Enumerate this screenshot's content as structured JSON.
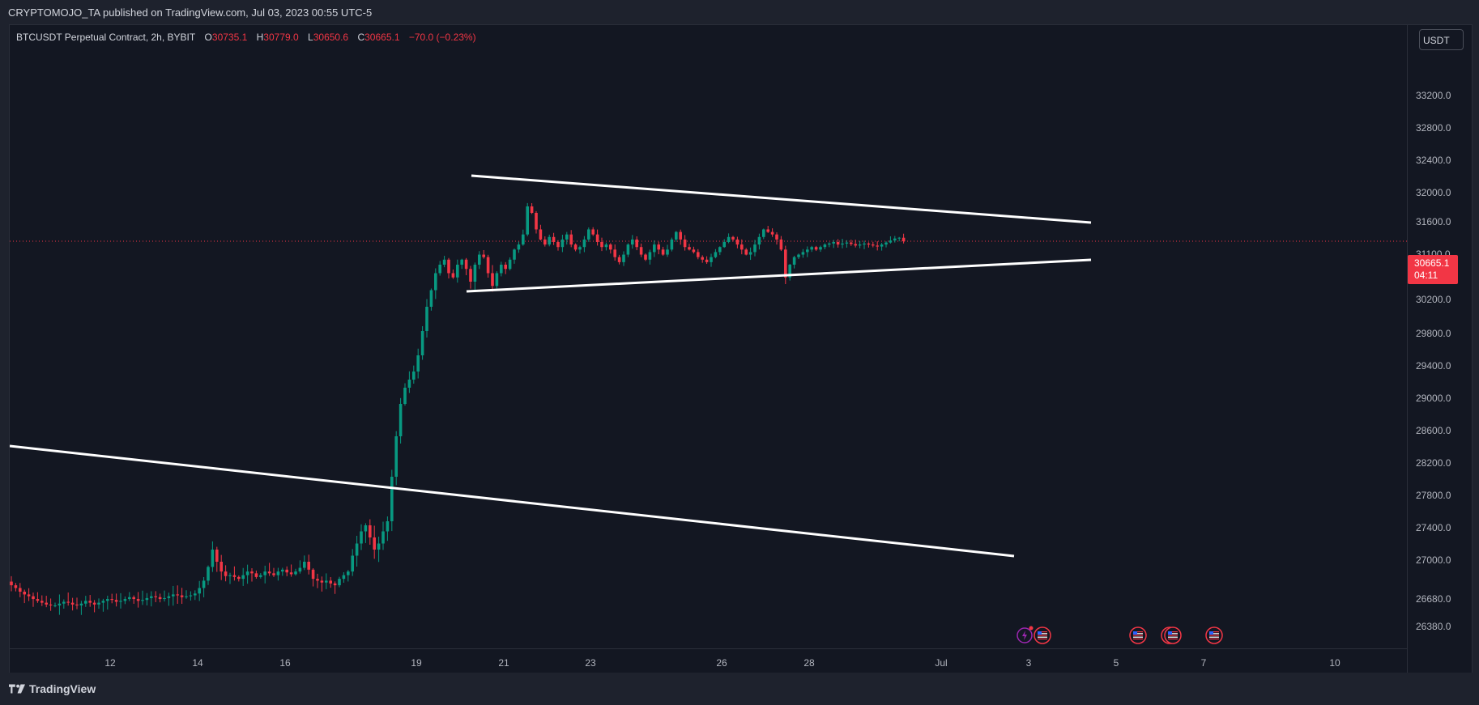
{
  "header": {
    "published": "CRYPTOMOJO_TA published on TradingView.com, Jul 03, 2023 00:55 UTC-5"
  },
  "legend": {
    "symbol": "BTCUSDT Perpetual Contract, 2h, BYBIT",
    "open_label": "O",
    "open": "30735.1",
    "high_label": "H",
    "high": "30779.0",
    "low_label": "L",
    "low": "30650.6",
    "close_label": "C",
    "close": "30665.1",
    "change": "−70.0 (−0.23%)"
  },
  "currency": "USDT",
  "price_axis": {
    "ticks": [
      "33200.0",
      "32800.0",
      "32400.0",
      "32000.0",
      "31600.0",
      "31100.0",
      "30200.0",
      "29800.0",
      "29400.0",
      "29000.0",
      "28600.0",
      "28200.0",
      "27800.0",
      "27400.0",
      "27000.0",
      "26680.0",
      "26380.0"
    ],
    "current_price": "30665.1",
    "countdown": "04:11"
  },
  "time_axis": {
    "ticks": [
      "12",
      "14",
      "16",
      "19",
      "21",
      "23",
      "26",
      "28",
      "Jul",
      "3",
      "5",
      "7",
      "10"
    ]
  },
  "footer": {
    "brand": "TradingView"
  },
  "colors": {
    "background": "#131722",
    "up": "#089981",
    "down": "#f23645",
    "trendline": "#ffffff",
    "grid_text": "#b2b5be"
  },
  "icons": [
    "lightning-event-icon",
    "us-flag-event-icon"
  ],
  "chart_data": {
    "type": "candlestick",
    "title": "BTCUSDT Perpetual Contract, 2h, BYBIT",
    "x_start": "Jun 10",
    "ylim": [
      26200,
      33500
    ],
    "close_series": [
      26450,
      26420,
      26380,
      26350,
      26330,
      26300,
      26280,
      26260,
      26240,
      26230,
      26230,
      26250,
      26270,
      26260,
      26240,
      26230,
      26250,
      26280,
      26260,
      26240,
      26260,
      26280,
      26300,
      26290,
      26270,
      26280,
      26300,
      26320,
      26300,
      26280,
      26290,
      26310,
      26330,
      26320,
      26300,
      26310,
      26330,
      26350,
      26340,
      26320,
      26330,
      26340,
      26360,
      26420,
      26500,
      26650,
      26800,
      26700,
      26600,
      26550,
      26560,
      26540,
      26520,
      26560,
      26600,
      26580,
      26540,
      26560,
      26600,
      26580,
      26560,
      26600,
      26620,
      26590,
      26570,
      26600,
      26640,
      26700,
      26620,
      26520,
      26500,
      26480,
      26500,
      26470,
      26450,
      26520,
      26560,
      26600,
      26750,
      26850,
      26950,
      27000,
      26900,
      26800,
      26850,
      26950,
      27050,
      27600,
      28100,
      28500,
      28700,
      28800,
      28900,
      29100,
      29400,
      29700,
      29900,
      30100,
      30200,
      30300,
      30100,
      30050,
      30200,
      30300,
      30150,
      30000,
      30200,
      30400,
      30350,
      30100,
      29950,
      30100,
      30200,
      30150,
      30300,
      30500,
      30600,
      30800,
      31300,
      31200,
      30900,
      30700,
      30600,
      30750,
      30650,
      30550,
      30700,
      30800,
      30600,
      30500,
      30550,
      30700,
      30900,
      30800,
      30650,
      30550,
      30600,
      30500,
      30350,
      30250,
      30400,
      30600,
      30700,
      30550,
      30400,
      30300,
      30450,
      30600,
      30500,
      30400,
      30500,
      30700,
      30850,
      30700,
      30550,
      30500,
      30450,
      30350,
      30300,
      30250,
      30350,
      30450,
      30550,
      30650,
      30750,
      30700,
      30600,
      30500,
      30400,
      30450,
      30600,
      30750,
      30900,
      30850,
      30800,
      30700,
      30500,
      30050,
      30200,
      30350,
      30400,
      30450,
      30500,
      30550,
      30500,
      30550,
      30600,
      30620,
      30650,
      30600,
      30620,
      30640,
      30610,
      30580,
      30600,
      30620,
      30600,
      30580,
      30560,
      30600,
      30640,
      30680,
      30720,
      30735,
      30665
    ]
  }
}
